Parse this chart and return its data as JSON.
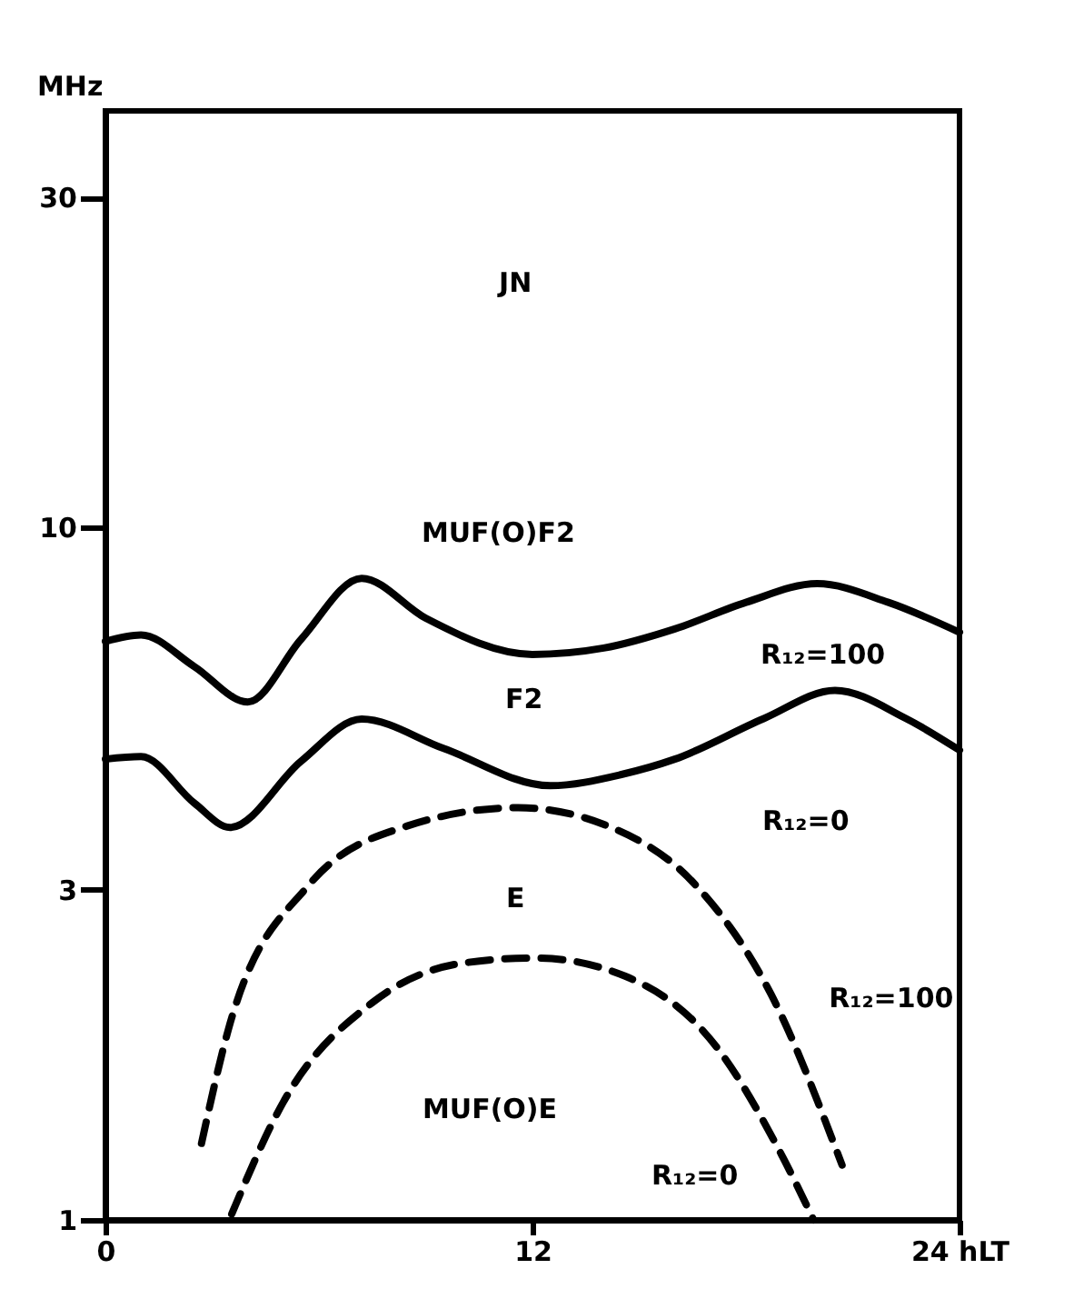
{
  "chart_data": {
    "type": "line",
    "ylabel": "MHz",
    "log": "y",
    "grid": false,
    "marker": "none",
    "xlim": [
      0,
      24
    ],
    "xticks": [
      0,
      12,
      {
        "value": 24,
        "label": "24 hLT"
      }
    ],
    "ylim": [
      1,
      40
    ],
    "yticks": [
      1,
      3,
      10,
      30
    ],
    "series": [
      {
        "color": "#000000",
        "line_style": "solid",
        "x": [
          0,
          1,
          2.5,
          4,
          5.5,
          7.2,
          9,
          12,
          14,
          16,
          18,
          20,
          22,
          24
        ],
        "values": [
          6.85,
          7.0,
          6.3,
          5.6,
          6.9,
          8.45,
          7.4,
          6.56,
          6.7,
          7.14,
          7.8,
          8.3,
          7.8,
          7.06
        ]
      },
      {
        "color": "#000000",
        "line_style": "solid",
        "x": [
          0,
          1,
          2.5,
          3.5,
          5.5,
          7.2,
          9.5,
          12.5,
          14.5,
          16,
          18.5,
          20.5,
          22.5,
          24
        ],
        "values": [
          4.63,
          4.67,
          4.0,
          3.69,
          4.6,
          5.29,
          4.8,
          4.24,
          4.4,
          4.63,
          5.3,
          5.82,
          5.3,
          4.77
        ]
      },
      {
        "color": "#000000",
        "line_style": "dashed",
        "x": [
          2.7,
          3.45,
          5.7,
          8.5,
          11.6,
          14.1,
          16.6,
          18.7,
          20.7
        ],
        "values": [
          1.29,
          1.88,
          3.04,
          3.71,
          3.94,
          3.71,
          3.04,
          2.12,
          1.2
        ]
      },
      {
        "color": "#000000",
        "line_style": "dashed",
        "x": [
          3.55,
          5.0,
          7.5,
          10.05,
          12.1,
          14.6,
          17.2,
          18.9,
          19.9
        ],
        "values": [
          1.02,
          1.48,
          2.06,
          2.35,
          2.39,
          2.25,
          1.77,
          1.27,
          1.0
        ]
      }
    ],
    "annotations": [
      "JN",
      "MUF(O)F2",
      "F2",
      "E",
      "MUF(O)E",
      "R₁₂=100",
      "R₁₂=0",
      "R₁₂=100",
      "R₁₂=0"
    ]
  }
}
